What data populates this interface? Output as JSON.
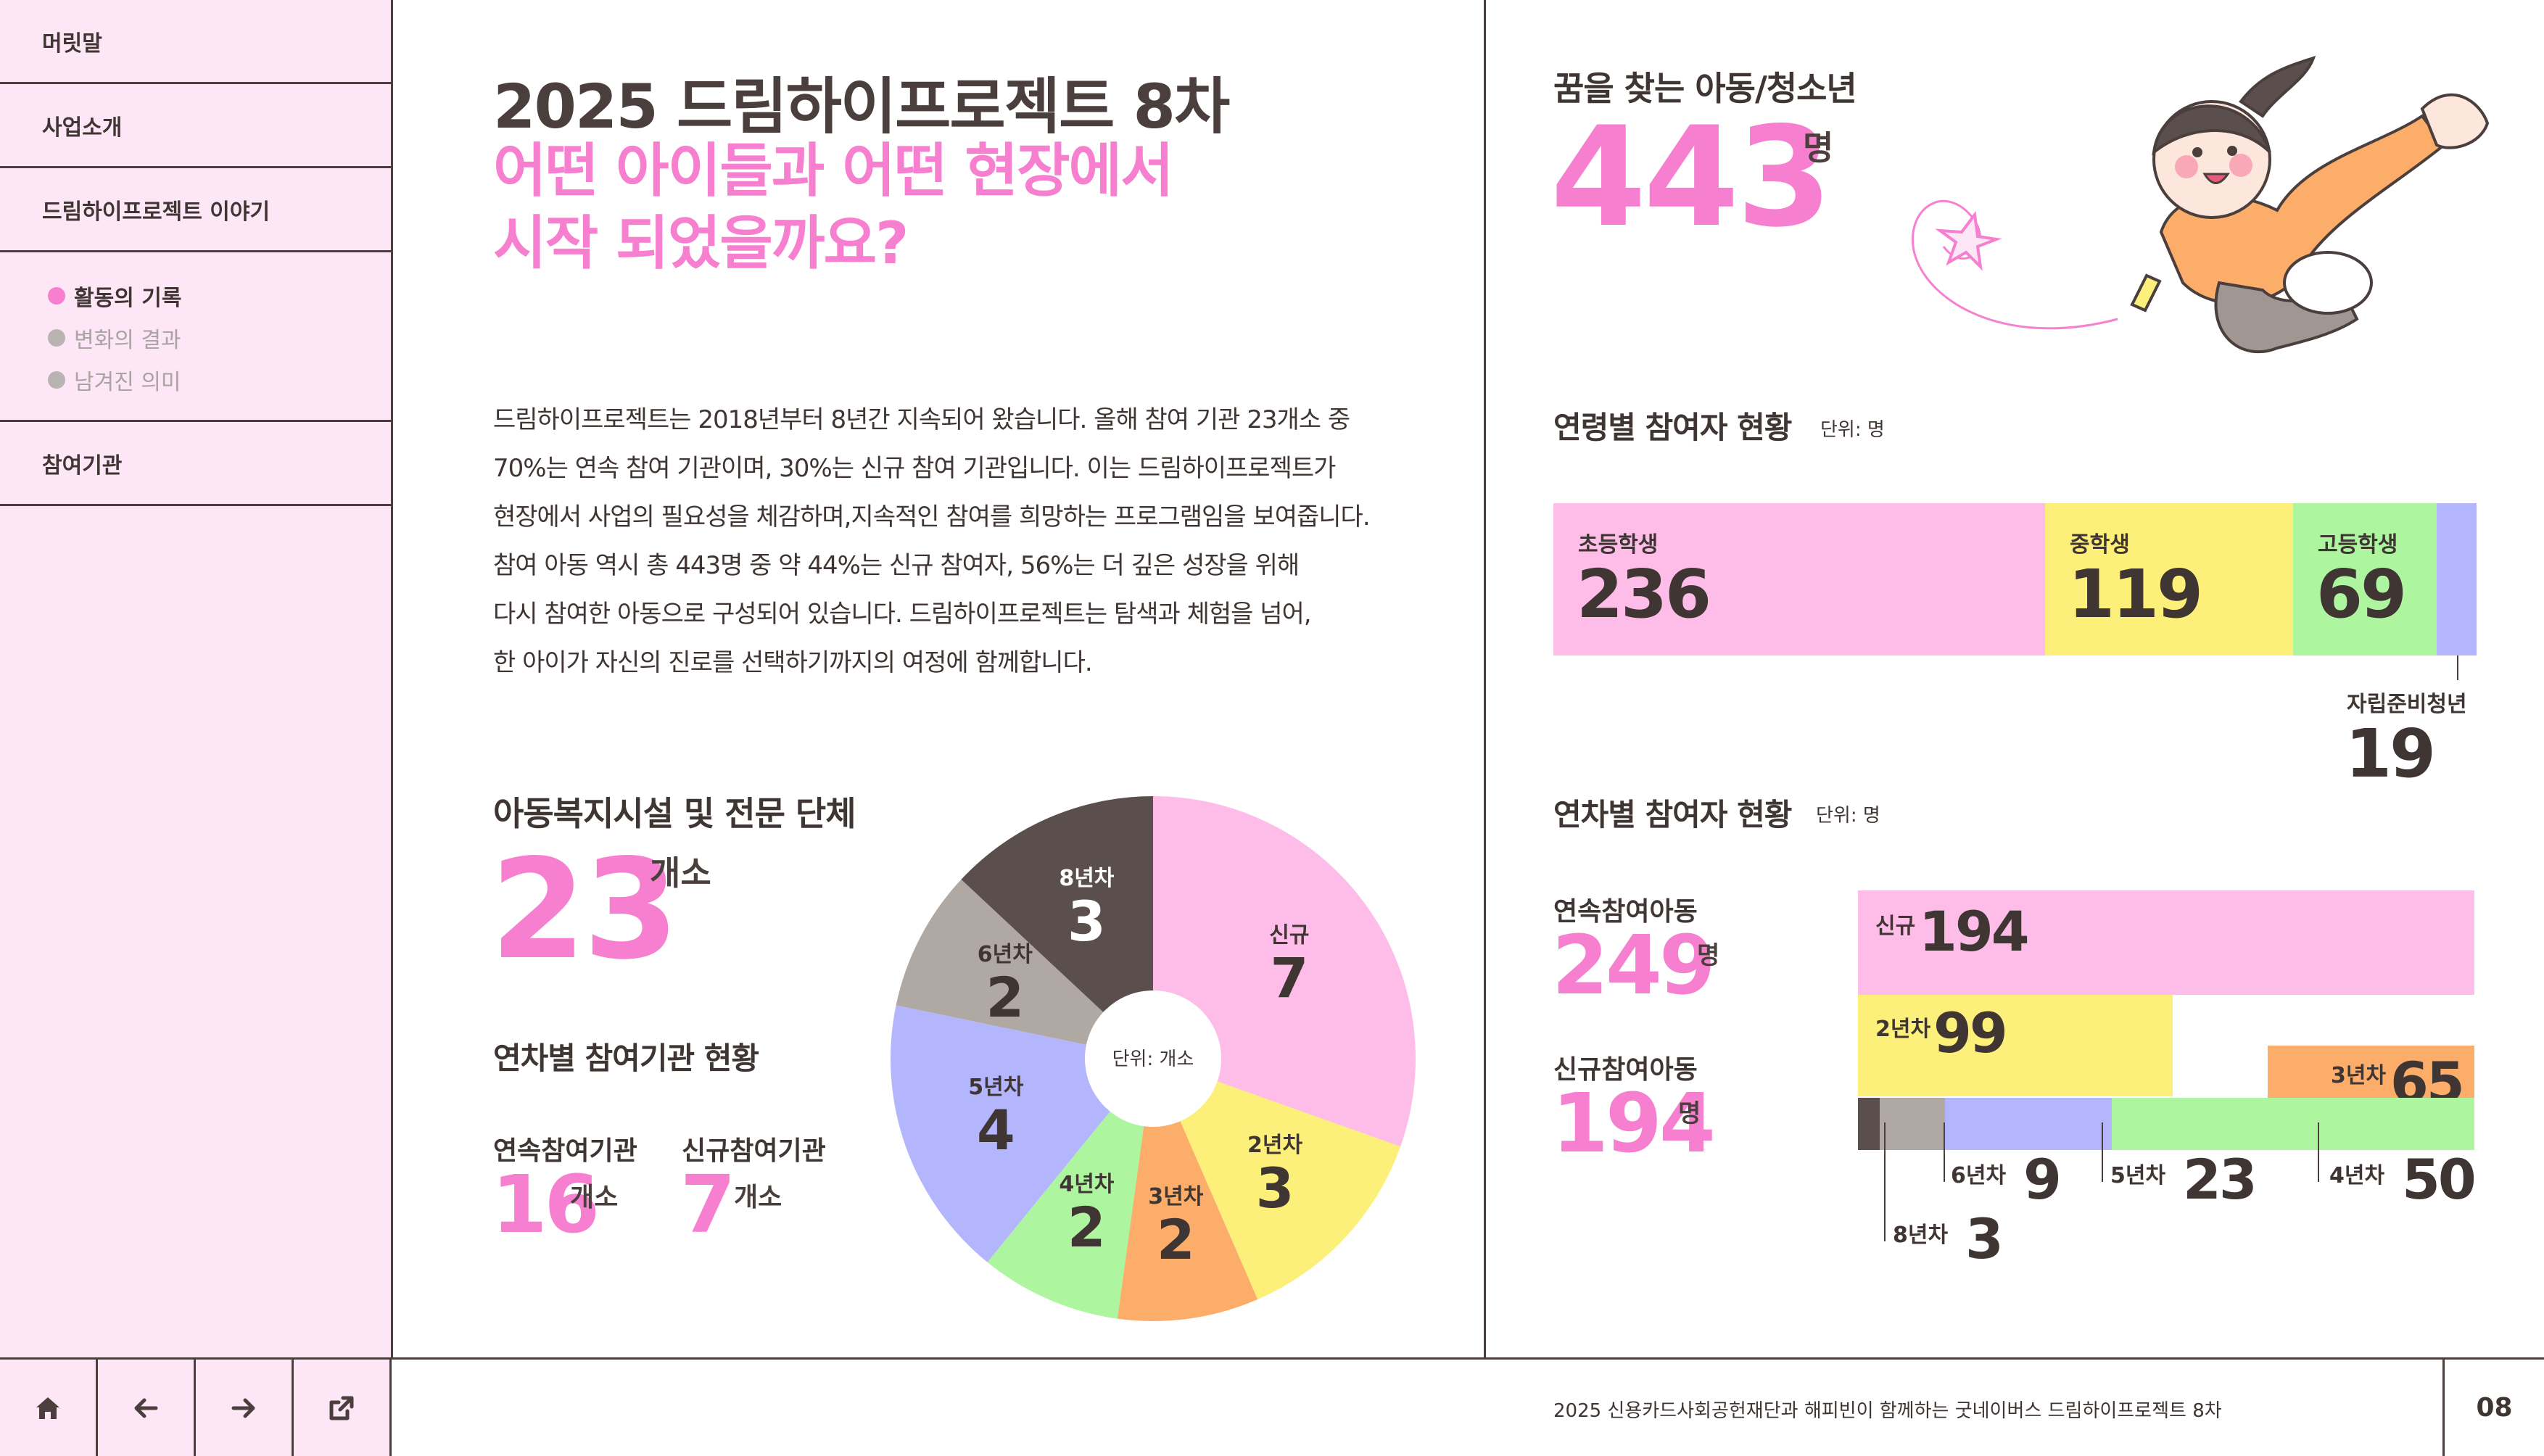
{
  "sidebar": {
    "items": [
      {
        "label": "머릿말"
      },
      {
        "label": "사업소개"
      },
      {
        "label": "드림하이프로젝트 이야기"
      },
      {
        "label": "참여기관"
      }
    ],
    "subitems": [
      {
        "label": "활동의 기록",
        "active": true
      },
      {
        "label": "변화의 결과",
        "active": false
      },
      {
        "label": "남겨진 의미",
        "active": false
      }
    ]
  },
  "bottombar": {
    "buttons": [
      "home-icon",
      "arrow-left-icon",
      "arrow-right-icon",
      "external-link-icon"
    ],
    "footer_text": "2025 신용카드사회공헌재단과 해피빈이 함께하는 굿네이버스 드림하이프로젝트 8차",
    "page_number": "08"
  },
  "left": {
    "title": "2025 드림하이프로젝트 8차",
    "subtitle_line1": "어떤 아이들과 어떤 현장에서",
    "subtitle_line2": "시작 되었을까요?",
    "intro_lines": [
      "드림하이프로젝트는 2018년부터 8년간 지속되어 왔습니다. 올해 참여 기관 23개소 중",
      "70%는 연속 참여 기관이며, 30%는 신규 참여 기관입니다. 이는 드림하이프로젝트가",
      "현장에서 사업의 필요성을 체감하며,지속적인 참여를 희망하는 프로그램임을 보여줍니다.",
      "참여 아동 역시 총 443명 중 약 44%는 신규 참여자, 56%는 더 깊은 성장을 위해",
      "다시 참여한 아동으로 구성되어 있습니다. 드림하이프로젝트는 탐색과 체험을 넘어,",
      "한 아이가 자신의 진로를 선택하기까지의 여정에 함께합니다."
    ],
    "institutions": {
      "title": "아동복지시설 및 전문 단체",
      "count": "23",
      "count_unit": "개소",
      "by_year_title": "연차별 참여기관 현황",
      "continuing_label": "연속참여기관",
      "continuing_value": "16",
      "continuing_unit": "개소",
      "new_label": "신규참여기관",
      "new_value": "7",
      "new_unit": "개소"
    }
  },
  "right": {
    "children_title": "꿈을 찾는 아동/청소년",
    "children_count": "443",
    "children_unit": "명",
    "age_title": "연령별 참여자 현황",
    "age_unit_note": "단위: 명",
    "year_title": "연차별 참여자 현황",
    "year_unit_note": "단위: 명",
    "continuing_children_label": "연속참여아동",
    "continuing_children_value": "249",
    "continuing_children_unit": "명",
    "new_children_label": "신규참여아동",
    "new_children_value": "194",
    "new_children_unit": "명"
  },
  "chart_data": [
    {
      "type": "pie",
      "title": "연차별 참여기관 현황",
      "center_label": "단위: 개소",
      "categories": [
        "신규",
        "2년차",
        "3년차",
        "4년차",
        "5년차",
        "6년차",
        "8년차"
      ],
      "values": [
        7,
        3,
        2,
        2,
        4,
        2,
        3
      ],
      "colors": [
        "#fdbde8",
        "#fdf07a",
        "#fcad6a",
        "#aef5a0",
        "#b3b6fc",
        "#b0a8a3",
        "#5a4f4c"
      ]
    },
    {
      "type": "bar",
      "title": "연령별 참여자 현황",
      "unit": "단위: 명",
      "categories": [
        "초등학생",
        "중학생",
        "고등학생",
        "자립준비청년"
      ],
      "values": [
        236,
        119,
        69,
        19
      ],
      "colors": [
        "#fdbde8",
        "#fdf07a",
        "#aef5a0",
        "#b3b6fc"
      ]
    },
    {
      "type": "bar",
      "title": "연차별 참여자 현황",
      "unit": "단위: 명",
      "categories": [
        "신규",
        "2년차",
        "3년차",
        "4년차",
        "5년차",
        "6년차",
        "8년차"
      ],
      "values": [
        194,
        99,
        65,
        50,
        23,
        9,
        3
      ],
      "colors": [
        "#fdbde8",
        "#fdf07a",
        "#fcad6a",
        "#aef5a0",
        "#b3b6fc",
        "#b0a8a3",
        "#5a4f4c"
      ]
    }
  ]
}
